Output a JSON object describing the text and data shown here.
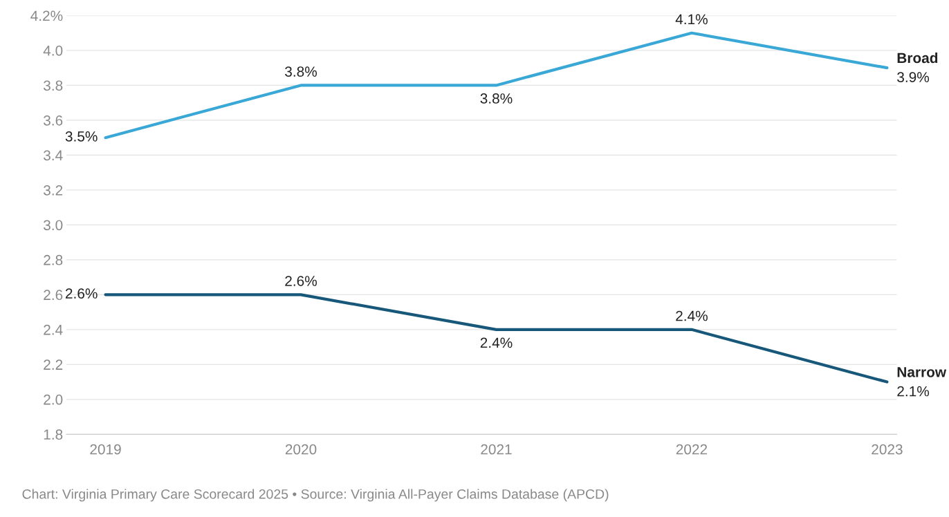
{
  "chart_data": {
    "type": "line",
    "categories": [
      "2019",
      "2020",
      "2021",
      "2022",
      "2023"
    ],
    "series": [
      {
        "name": "Broad",
        "color": "#3aa8d6",
        "values": [
          3.5,
          3.8,
          3.8,
          4.1,
          3.9
        ],
        "value_labels": [
          "3.5%",
          "3.8%",
          "3.8%",
          "4.1%",
          "3.9%"
        ]
      },
      {
        "name": "Narrow",
        "color": "#17587a",
        "values": [
          2.6,
          2.6,
          2.4,
          2.4,
          2.1
        ],
        "value_labels": [
          "2.6%",
          "2.6%",
          "2.4%",
          "2.4%",
          "2.1%"
        ]
      }
    ],
    "ylim": [
      1.8,
      4.2
    ],
    "yticks": [
      {
        "value": 1.8,
        "label": "1.8"
      },
      {
        "value": 2.0,
        "label": "2.0"
      },
      {
        "value": 2.2,
        "label": "2.2"
      },
      {
        "value": 2.4,
        "label": "2.4"
      },
      {
        "value": 2.6,
        "label": "2.6"
      },
      {
        "value": 2.8,
        "label": "2.8"
      },
      {
        "value": 3.0,
        "label": "3.0"
      },
      {
        "value": 3.2,
        "label": "3.2"
      },
      {
        "value": 3.4,
        "label": "3.4"
      },
      {
        "value": 3.6,
        "label": "3.6"
      },
      {
        "value": 3.8,
        "label": "3.8"
      },
      {
        "value": 4.0,
        "label": "4.0"
      },
      {
        "value": 4.2,
        "label": "4.2%"
      }
    ],
    "grid": "y",
    "legend": false,
    "marker": "none",
    "line_style": "solid",
    "annotations": [
      "Chart: Virginia Primary Care Scorecard 2025 • Source: Virginia All-Payer Claims Database (APCD)"
    ]
  }
}
